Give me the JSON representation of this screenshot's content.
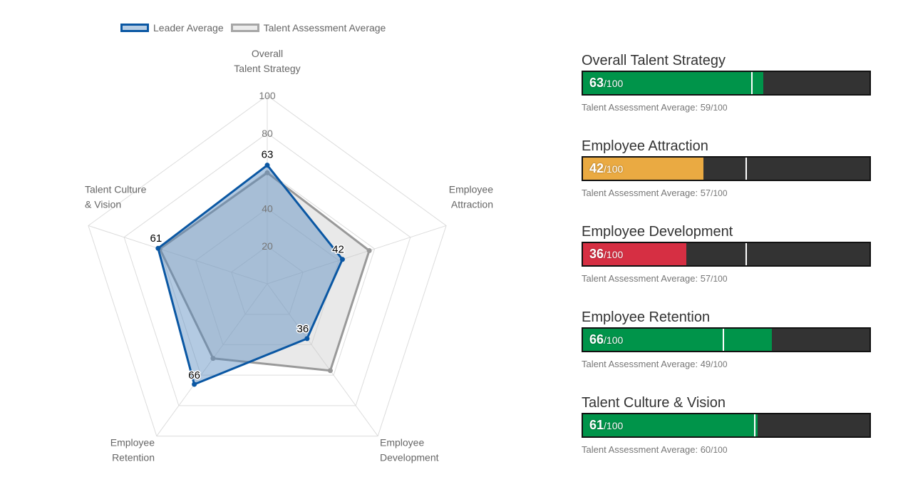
{
  "legend": {
    "leader": "Leader Average",
    "talent": "Talent Assessment Average"
  },
  "colors": {
    "leader_stroke": "#0a57a3",
    "leader_fill": "rgba(86,137,190,0.45)",
    "talent_stroke": "#999999",
    "talent_fill": "rgba(200,200,200,0.4)",
    "green": "#00944a",
    "orange": "#eaaa42",
    "red": "#d62f43",
    "bar_bg": "#333333"
  },
  "chart_data": {
    "type": "radar",
    "axes": [
      [
        "Overall",
        "Talent Strategy"
      ],
      [
        "Employee",
        "Attraction"
      ],
      [
        "Employee",
        "Development"
      ],
      [
        "Employee",
        "Retention"
      ],
      [
        "Talent Culture",
        "& Vision"
      ]
    ],
    "ticks": [
      20,
      40,
      60,
      80,
      100
    ],
    "tick_labels": [
      "20",
      "40",
      "",
      "80",
      "100"
    ],
    "range": [
      0,
      100
    ],
    "series": [
      {
        "name": "Talent Assessment Average",
        "values": [
          59,
          57,
          57,
          49,
          60
        ]
      },
      {
        "name": "Leader Average",
        "values": [
          63,
          42,
          36,
          66,
          61
        ],
        "data_labels": true
      }
    ],
    "legend_position": "top-left"
  },
  "scores": [
    {
      "title": "Overall Talent Strategy",
      "value": 63,
      "value_text": "63",
      "max_text": "/100",
      "avg": 59,
      "avg_label": "Talent Assessment Average: 59",
      "avg_max": "/100",
      "color": "green"
    },
    {
      "title": "Employee Attraction",
      "value": 42,
      "value_text": "42",
      "max_text": "/100",
      "avg": 57,
      "avg_label": "Talent Assessment Average: 57",
      "avg_max": "/100",
      "color": "orange"
    },
    {
      "title": "Employee Development",
      "value": 36,
      "value_text": "36",
      "max_text": "/100",
      "avg": 57,
      "avg_label": "Talent Assessment Average: 57",
      "avg_max": "/100",
      "color": "red"
    },
    {
      "title": "Employee Retention",
      "value": 66,
      "value_text": "66",
      "max_text": "/100",
      "avg": 49,
      "avg_label": "Talent Assessment Average: 49",
      "avg_max": "/100",
      "color": "green"
    },
    {
      "title": "Talent Culture & Vision",
      "value": 61,
      "value_text": "61",
      "max_text": "/100",
      "avg": 60,
      "avg_label": "Talent Assessment Average: 60",
      "avg_max": "/100",
      "color": "green"
    }
  ]
}
